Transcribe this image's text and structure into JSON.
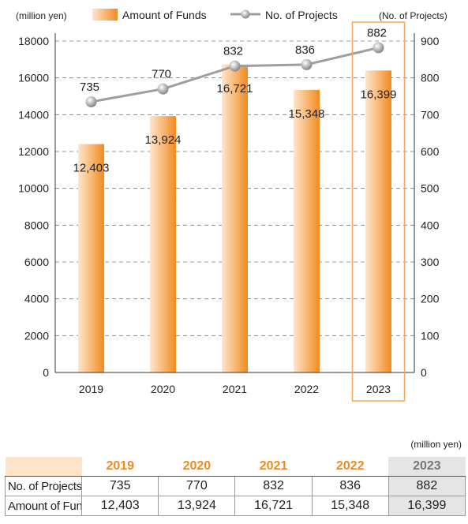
{
  "chart_data": {
    "type": "bar+line",
    "categories": [
      "2019",
      "2020",
      "2021",
      "2022",
      "2023"
    ],
    "series": [
      {
        "name": "Amount of Funds",
        "type": "bar",
        "axis": "left",
        "values": [
          12403,
          13924,
          16721,
          15348,
          16399
        ],
        "labels": [
          "12,403",
          "13,924",
          "16,721",
          "15,348",
          "16,399"
        ]
      },
      {
        "name": "No. of Projects",
        "type": "line",
        "axis": "right",
        "values": [
          735,
          770,
          832,
          836,
          882
        ],
        "labels": [
          "735",
          "770",
          "832",
          "836",
          "882"
        ]
      }
    ],
    "y_left": {
      "unit": "(million yen)",
      "ylim": [
        0,
        18000
      ],
      "ticks": [
        "0",
        "2000",
        "4000",
        "6000",
        "8000",
        "10000",
        "12000",
        "14000",
        "16000",
        "18000"
      ]
    },
    "y_right": {
      "unit": "(No. of Projects)",
      "ylim": [
        0,
        900
      ],
      "ticks": [
        "0",
        "100",
        "200",
        "300",
        "400",
        "500",
        "600",
        "700",
        "800",
        "900"
      ]
    },
    "grid": "horizontal-dashed",
    "legend": "top",
    "highlighted_category": "2023",
    "colors": {
      "bar_light": "#fde6cf",
      "bar_dark": "#f08a1e",
      "line": "#9e9e9e",
      "marker": "#9a9a9a",
      "highlight": "#f4a65a"
    }
  },
  "table": {
    "unit": "(million yen)",
    "years": [
      "2019",
      "2020",
      "2021",
      "2022",
      "2023"
    ],
    "rows": [
      {
        "label": "No. of Projects",
        "values": [
          "735",
          "770",
          "832",
          "836",
          "882"
        ]
      },
      {
        "label": "Amount of Funds",
        "values": [
          "12,403",
          "13,924",
          "16,721",
          "15,348",
          "16,399"
        ]
      }
    ]
  }
}
